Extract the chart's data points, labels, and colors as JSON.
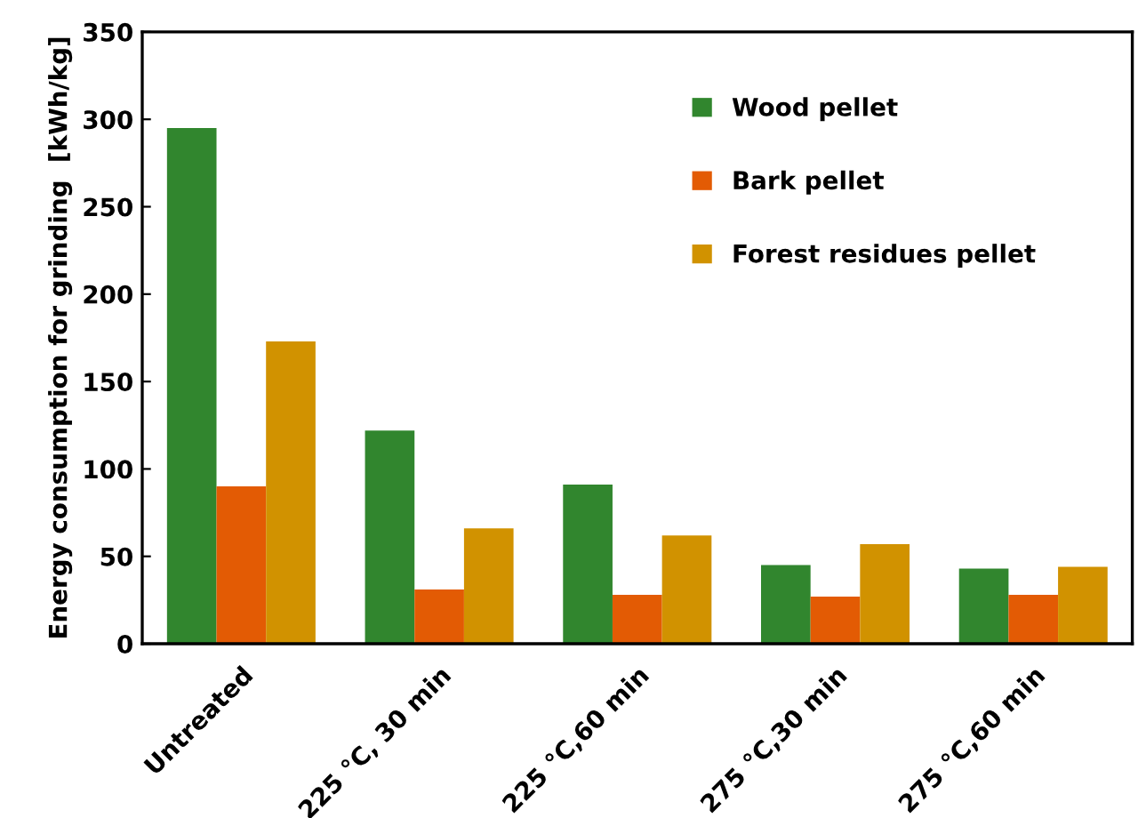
{
  "chart_data": {
    "type": "bar",
    "ylabel": "Energy consumption for grinding  [kWh/kg]",
    "categories": [
      "Untreated",
      "225 °C, 30 min",
      "225 °C,60 min",
      "275 °C,30 min",
      "275 °C,60 min"
    ],
    "series": [
      {
        "name": "Wood pellet",
        "color": "#31862e",
        "values": [
          295,
          122,
          91,
          45,
          43
        ]
      },
      {
        "name": "Bark pellet",
        "color": "#e35b04",
        "values": [
          90,
          31,
          28,
          27,
          28
        ]
      },
      {
        "name": "Forest residues pellet",
        "color": "#d19200",
        "values": [
          173,
          66,
          62,
          57,
          44
        ]
      }
    ],
    "ylim": [
      0,
      350
    ],
    "yticks": [
      0,
      50,
      100,
      150,
      200,
      250,
      300,
      350
    ],
    "grid": false,
    "legend": "top right"
  }
}
